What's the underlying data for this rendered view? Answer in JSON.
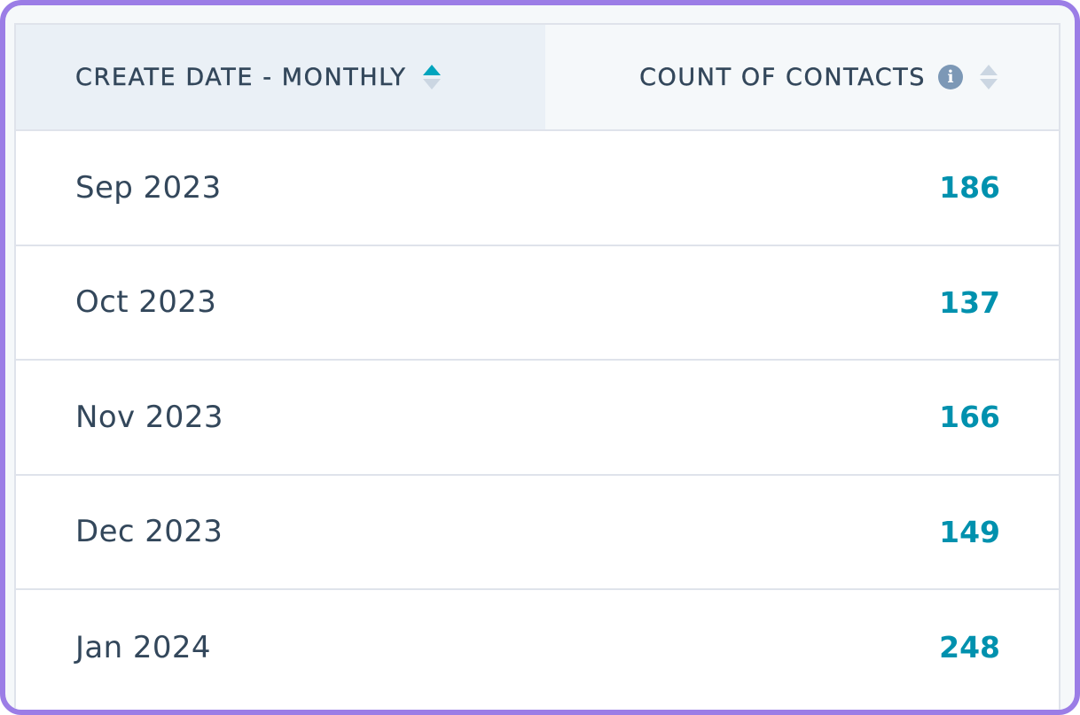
{
  "table": {
    "columns": [
      {
        "label": "CREATE DATE - MONTHLY",
        "sort": "ascending"
      },
      {
        "label": "COUNT OF CONTACTS",
        "sort": "none",
        "info_icon": "info-icon"
      }
    ],
    "rows": [
      {
        "date": "Sep 2023",
        "count": "186"
      },
      {
        "date": "Oct 2023",
        "count": "137"
      },
      {
        "date": "Nov 2023",
        "count": "166"
      },
      {
        "date": "Dec 2023",
        "count": "149"
      },
      {
        "date": "Jan 2024",
        "count": "248"
      }
    ]
  },
  "colors": {
    "frame_border": "#9b7de6",
    "header_text": "#33475b",
    "count_link": "#0091ae",
    "sort_active": "#00a4bd",
    "sort_inactive": "#cbd6e2",
    "info_icon": "#7c98b6"
  }
}
